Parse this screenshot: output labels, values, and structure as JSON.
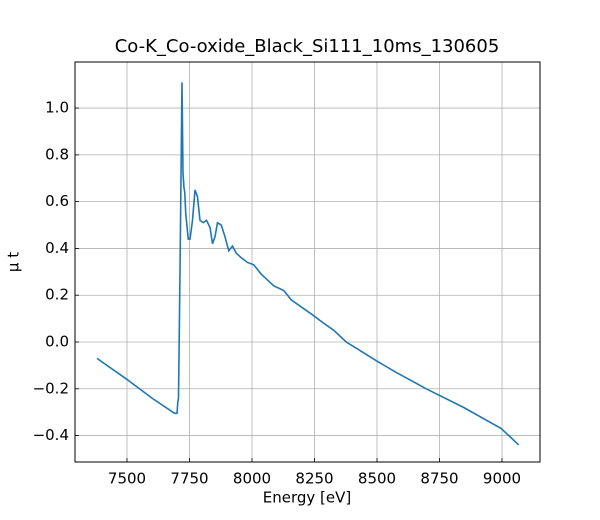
{
  "chart_data": {
    "type": "line",
    "title": "Co-K_Co-oxide_Black_Si111_10ms_130605",
    "xlabel": "Energy [eV]",
    "ylabel": "μ t",
    "x": [
      7380,
      7500,
      7600,
      7690,
      7700,
      7703,
      7706,
      7712,
      7720,
      7724,
      7728,
      7731,
      7735,
      7745,
      7752,
      7762,
      7772,
      7782,
      7792,
      7805,
      7818,
      7832,
      7842,
      7852,
      7862,
      7877,
      7892,
      7907,
      7922,
      7937,
      7957,
      7982,
      8007,
      8037,
      8057,
      8087,
      8127,
      8157,
      8197,
      8237,
      8287,
      8327,
      8377,
      8437,
      8497,
      8577,
      8697,
      8847,
      8997,
      9067
    ],
    "series": [
      {
        "name": "μ t",
        "color": "#1f77b4",
        "values": [
          -0.07,
          -0.16,
          -0.24,
          -0.305,
          -0.305,
          -0.26,
          -0.24,
          0.3,
          1.11,
          0.72,
          0.66,
          0.64,
          0.55,
          0.44,
          0.44,
          0.52,
          0.65,
          0.62,
          0.52,
          0.51,
          0.52,
          0.49,
          0.42,
          0.45,
          0.51,
          0.5,
          0.45,
          0.39,
          0.41,
          0.38,
          0.36,
          0.34,
          0.33,
          0.29,
          0.27,
          0.24,
          0.22,
          0.18,
          0.15,
          0.12,
          0.08,
          0.05,
          0.0,
          -0.04,
          -0.08,
          -0.13,
          -0.2,
          -0.28,
          -0.37,
          -0.44
        ]
      }
    ],
    "xlim": [
      7292,
      9152
    ],
    "ylim": [
      -0.513,
      1.197
    ],
    "xticks": [
      7500,
      7750,
      8000,
      8250,
      8500,
      8750,
      9000
    ],
    "yticks": [
      {
        "value": -0.4,
        "label": "−0.4"
      },
      {
        "value": -0.2,
        "label": "−0.2"
      },
      {
        "value": 0,
        "label": "0.0"
      },
      {
        "value": 0.2,
        "label": "0.2"
      },
      {
        "value": 0.4,
        "label": "0.4"
      },
      {
        "value": 0.6,
        "label": "0.6"
      },
      {
        "value": 0.8,
        "label": "0.8"
      },
      {
        "value": 1.0,
        "label": "1.0"
      }
    ],
    "grid": true
  }
}
